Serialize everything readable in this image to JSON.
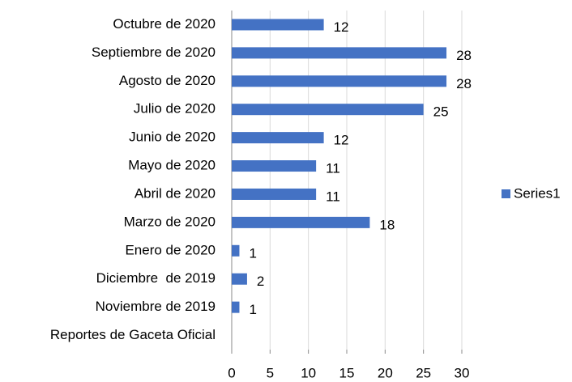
{
  "chart_data": {
    "type": "bar",
    "orientation": "horizontal",
    "categories": [
      "Octubre de 2020",
      "Septiembre de 2020",
      "Agosto de 2020",
      "Julio de 2020",
      "Junio de 2020",
      "Mayo de 2020",
      "Abril de 2020",
      "Marzo de 2020",
      "Enero de 2020",
      "Diciembre  de 2019",
      "Noviembre de 2019",
      "Reportes de Gaceta Oficial"
    ],
    "series": [
      {
        "name": "Series1",
        "color": "#4472c4",
        "values": [
          12,
          28,
          28,
          25,
          12,
          11,
          11,
          18,
          1,
          2,
          1,
          null
        ]
      }
    ],
    "xlim": [
      0,
      30
    ],
    "xticks": [
      0,
      5,
      10,
      15,
      20,
      25,
      30
    ],
    "grid": true,
    "legend": "right"
  }
}
